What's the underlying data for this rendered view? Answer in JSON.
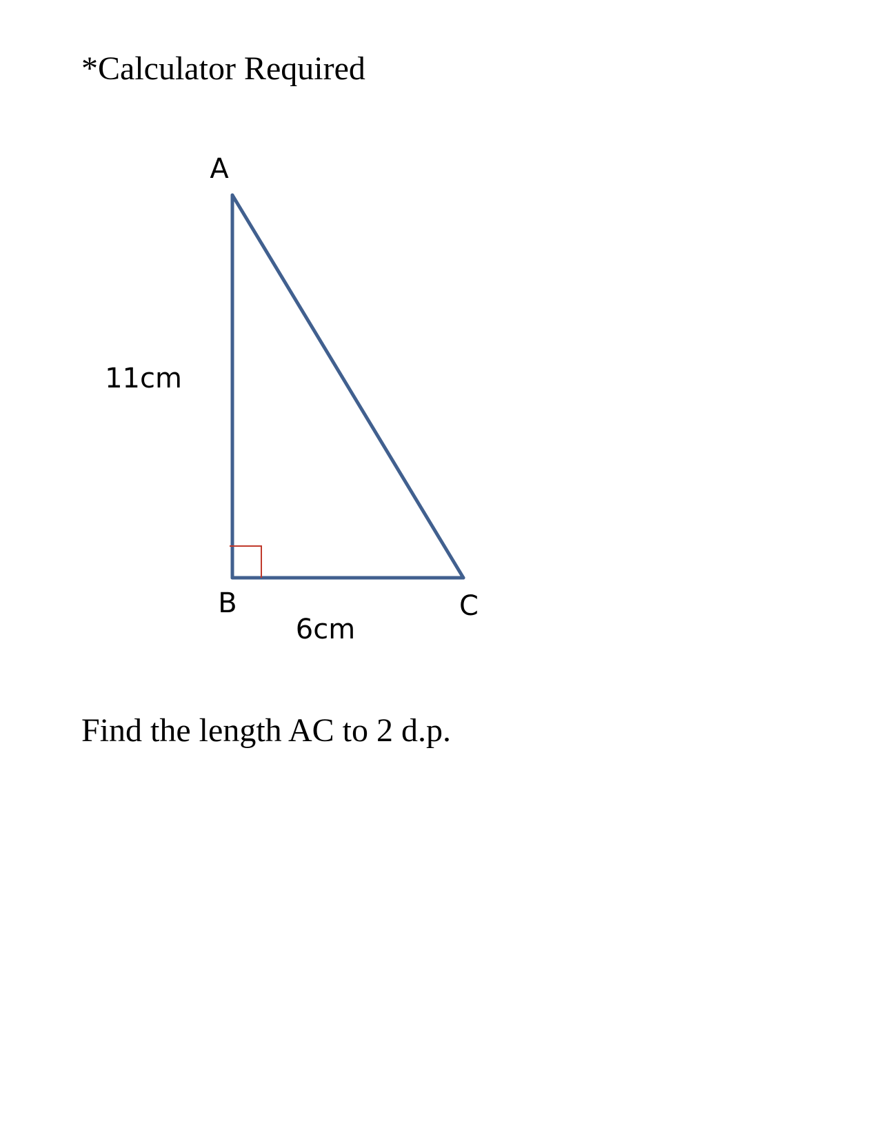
{
  "header": {
    "note": "*Calculator Required"
  },
  "diagram": {
    "vertices": {
      "a": "A",
      "b": "B",
      "c": "C"
    },
    "side_lengths": {
      "ab": "11cm",
      "bc": "6cm"
    },
    "colors": {
      "triangle_stroke": "#41608f",
      "right_angle_marker": "#c0392b"
    }
  },
  "question": {
    "text": "Find the length AC to 2 d.p."
  }
}
